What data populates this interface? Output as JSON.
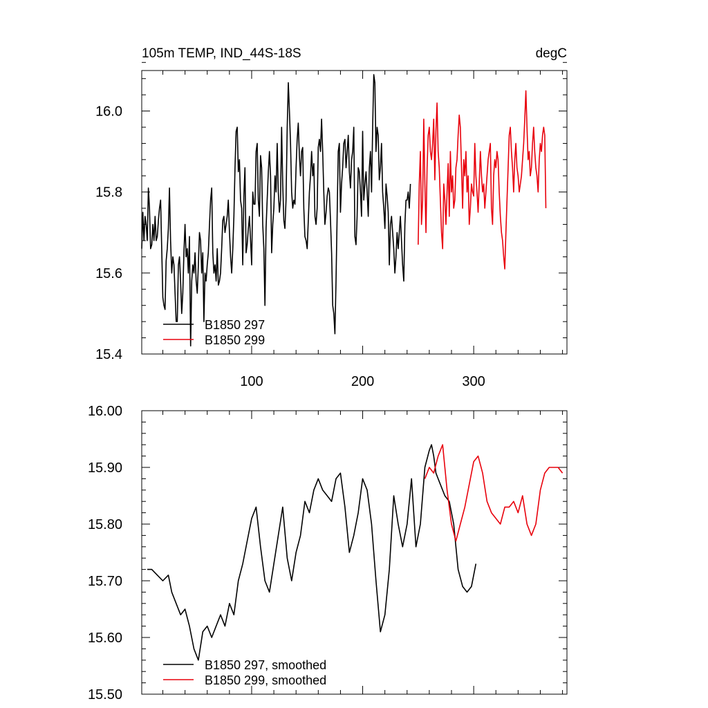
{
  "chart_data": [
    {
      "type": "line",
      "title": "105m TEMP, IND_44S-18S",
      "units": "degC",
      "xlim": [
        1,
        384
      ],
      "ylim": [
        15.4,
        16.1
      ],
      "xticks": [
        100,
        200,
        300
      ],
      "xtick_labels": [
        "100",
        "200",
        "300"
      ],
      "yticks": [
        15.4,
        15.6,
        15.8,
        16.0
      ],
      "ytick_labels": [
        "15.4",
        "15.6",
        "15.8",
        "16.0"
      ],
      "legend": {
        "placement": "bottom-left",
        "entries": [
          "B1850 297",
          "B1850 299"
        ]
      },
      "series": [
        {
          "name": "B1850 297",
          "color": "#000000",
          "x_start": 1,
          "values": [
            15.66,
            15.75,
            15.68,
            15.74,
            15.72,
            15.68,
            15.81,
            15.76,
            15.66,
            15.67,
            15.72,
            15.68,
            15.74,
            15.68,
            15.69,
            15.73,
            15.76,
            15.78,
            15.66,
            15.54,
            15.52,
            15.51,
            15.63,
            15.66,
            15.71,
            15.81,
            15.68,
            15.6,
            15.64,
            15.62,
            15.55,
            15.48,
            15.48,
            15.62,
            15.64,
            15.58,
            15.5,
            15.55,
            15.65,
            15.72,
            15.64,
            15.66,
            15.6,
            15.69,
            15.42,
            15.58,
            15.62,
            15.6,
            15.65,
            15.58,
            15.55,
            15.62,
            15.7,
            15.68,
            15.6,
            15.65,
            15.48,
            15.6,
            15.58,
            15.62,
            15.65,
            15.72,
            15.78,
            15.81,
            15.65,
            15.6,
            15.62,
            15.58,
            15.66,
            15.57,
            15.58,
            15.6,
            15.66,
            15.73,
            15.74,
            15.7,
            15.72,
            15.74,
            15.78,
            15.7,
            15.64,
            15.6,
            15.66,
            15.74,
            15.86,
            15.95,
            15.96,
            15.85,
            15.88,
            15.78,
            15.76,
            15.62,
            15.79,
            15.86,
            15.65,
            15.67,
            15.71,
            15.74,
            15.68,
            15.62,
            15.8,
            15.77,
            15.77,
            15.9,
            15.92,
            15.78,
            15.74,
            15.89,
            15.86,
            15.72,
            15.66,
            15.52,
            15.71,
            15.78,
            15.85,
            15.9,
            15.84,
            15.65,
            15.72,
            15.76,
            15.84,
            15.8,
            15.92,
            15.8,
            15.75,
            15.78,
            15.96,
            15.82,
            15.73,
            15.71,
            15.78,
            15.96,
            16.07,
            16.0,
            15.92,
            15.8,
            15.76,
            15.78,
            15.77,
            15.86,
            15.93,
            15.97,
            15.89,
            15.84,
            15.9,
            15.91,
            15.76,
            15.69,
            15.68,
            15.66,
            15.73,
            15.8,
            15.84,
            15.9,
            15.84,
            15.87,
            15.74,
            15.72,
            15.76,
            15.91,
            15.93,
            15.9,
            15.98,
            15.9,
            15.8,
            15.72,
            15.75,
            15.79,
            15.81,
            15.8,
            15.73,
            15.65,
            15.52,
            15.5,
            15.45,
            15.58,
            15.74,
            15.9,
            15.92,
            15.75,
            15.82,
            15.86,
            15.92,
            15.93,
            15.86,
            15.9,
            15.94,
            15.85,
            15.81,
            15.88,
            15.9,
            15.96,
            15.69,
            15.67,
            15.74,
            15.86,
            15.85,
            15.8,
            15.74,
            15.95,
            15.78,
            15.82,
            15.85,
            15.8,
            15.74,
            15.86,
            15.9,
            15.8,
            15.96,
            16.09,
            16.07,
            15.9,
            15.96,
            15.94,
            15.83,
            15.86,
            15.92,
            15.8,
            15.76,
            15.71,
            15.82,
            15.79,
            15.75,
            15.62,
            15.72,
            15.74,
            15.7,
            15.66,
            15.6,
            15.64,
            15.7,
            15.66,
            15.7,
            15.74,
            15.68,
            15.62,
            15.58,
            15.72,
            15.78,
            15.78,
            15.8,
            15.76,
            15.82
          ]
        },
        {
          "name": "B1850 299",
          "color": "#e8000b",
          "x_start": 250,
          "values": [
            15.67,
            15.82,
            15.9,
            15.72,
            15.78,
            15.98,
            15.82,
            15.7,
            15.86,
            15.94,
            15.96,
            15.9,
            15.88,
            15.92,
            15.98,
            15.83,
            15.95,
            16.02,
            15.9,
            15.86,
            15.78,
            15.7,
            15.66,
            15.82,
            15.78,
            15.72,
            15.8,
            15.87,
            15.74,
            15.9,
            15.8,
            15.84,
            15.76,
            15.78,
            15.86,
            15.88,
            15.94,
            15.99,
            15.96,
            15.86,
            15.76,
            15.88,
            15.84,
            15.9,
            15.8,
            15.84,
            15.72,
            15.76,
            15.82,
            15.8,
            15.79,
            15.92,
            15.84,
            15.8,
            15.75,
            15.82,
            15.9,
            15.84,
            15.8,
            15.82,
            15.76,
            15.8,
            15.84,
            15.88,
            15.9,
            15.92,
            15.76,
            15.72,
            15.84,
            15.88,
            15.86,
            15.9,
            15.88,
            15.8,
            15.74,
            15.7,
            15.68,
            15.64,
            15.61,
            15.7,
            15.78,
            15.86,
            15.94,
            15.96,
            15.9,
            15.86,
            15.8,
            15.88,
            15.92,
            15.86,
            15.84,
            15.8,
            15.82,
            15.84,
            15.88,
            15.92,
            15.98,
            16.05,
            15.96,
            15.88,
            15.9,
            15.84,
            15.86,
            15.92,
            15.96,
            15.9,
            15.86,
            15.84,
            15.8,
            15.88,
            15.92,
            15.9,
            15.94,
            15.96,
            15.94,
            15.76
          ]
        }
      ]
    },
    {
      "type": "line",
      "title": "",
      "xlim": [
        1,
        384
      ],
      "ylim": [
        15.5,
        16.0
      ],
      "yticks": [
        15.5,
        15.6,
        15.7,
        15.8,
        15.9,
        16.0
      ],
      "ytick_labels": [
        "15.50",
        "15.60",
        "15.70",
        "15.80",
        "15.90",
        "16.00"
      ],
      "legend": {
        "placement": "bottom-left",
        "entries": [
          "B1850 297, smoothed",
          "B1850 299, smoothed"
        ]
      },
      "series": [
        {
          "name": "B1850 297, smoothed",
          "color": "#000000",
          "x": [
            6,
            10,
            15,
            20,
            25,
            28,
            32,
            36,
            40,
            44,
            48,
            52,
            56,
            60,
            64,
            68,
            72,
            76,
            80,
            84,
            88,
            92,
            96,
            100,
            104,
            108,
            112,
            116,
            120,
            124,
            128,
            132,
            136,
            140,
            144,
            148,
            152,
            156,
            160,
            164,
            168,
            172,
            176,
            180,
            184,
            188,
            192,
            196,
            200,
            204,
            208,
            212,
            216,
            220,
            224,
            228,
            232,
            236,
            240,
            244,
            248,
            252,
            256,
            260,
            262,
            264,
            266,
            270,
            274,
            278,
            282,
            286,
            290,
            294,
            298,
            300,
            302
          ],
          "values": [
            15.72,
            15.72,
            15.71,
            15.7,
            15.71,
            15.68,
            15.66,
            15.64,
            15.65,
            15.62,
            15.58,
            15.56,
            15.61,
            15.62,
            15.6,
            15.62,
            15.64,
            15.62,
            15.66,
            15.64,
            15.7,
            15.73,
            15.77,
            15.81,
            15.83,
            15.76,
            15.7,
            15.68,
            15.73,
            15.78,
            15.83,
            15.74,
            15.7,
            15.75,
            15.78,
            15.84,
            15.82,
            15.86,
            15.88,
            15.86,
            15.85,
            15.84,
            15.88,
            15.89,
            15.83,
            15.75,
            15.78,
            15.82,
            15.88,
            15.86,
            15.8,
            15.7,
            15.61,
            15.64,
            15.72,
            15.85,
            15.8,
            15.76,
            15.8,
            15.88,
            15.76,
            15.8,
            15.9,
            15.93,
            15.94,
            15.92,
            15.89,
            15.87,
            15.85,
            15.84,
            15.8,
            15.72,
            15.69,
            15.68,
            15.69,
            15.71,
            15.73
          ]
        },
        {
          "name": "B1850 299, smoothed",
          "color": "#e8000b",
          "x": [
            256,
            260,
            264,
            268,
            272,
            276,
            280,
            284,
            288,
            292,
            296,
            300,
            304,
            308,
            312,
            316,
            320,
            324,
            328,
            332,
            336,
            340,
            344,
            348,
            352,
            356,
            360,
            364,
            368,
            372,
            376,
            380
          ],
          "values": [
            15.88,
            15.9,
            15.89,
            15.92,
            15.94,
            15.86,
            15.8,
            15.77,
            15.8,
            15.83,
            15.87,
            15.91,
            15.92,
            15.89,
            15.84,
            15.82,
            15.81,
            15.8,
            15.83,
            15.83,
            15.84,
            15.82,
            15.85,
            15.8,
            15.78,
            15.8,
            15.86,
            15.89,
            15.9,
            15.9,
            15.9,
            15.89
          ]
        }
      ]
    }
  ]
}
